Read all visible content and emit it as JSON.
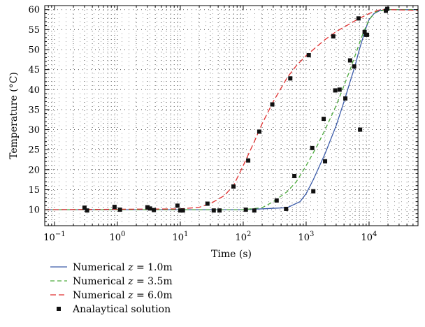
{
  "chart_data": {
    "type": "line",
    "title": "",
    "xlabel": "Time (s)",
    "ylabel": "Temperature (°C)",
    "x_scale": "log",
    "xlim": [
      0.07,
      60000
    ],
    "ylim": [
      6,
      61
    ],
    "grid": true,
    "legend_position": "below",
    "y_ticks": [
      10,
      15,
      20,
      25,
      30,
      35,
      40,
      45,
      50,
      55,
      60
    ],
    "x_ticks": [
      {
        "value": 0.1,
        "base": "10",
        "exp": "−1"
      },
      {
        "value": 1,
        "base": "10",
        "exp": "0"
      },
      {
        "value": 10,
        "base": "10",
        "exp": "1"
      },
      {
        "value": 100,
        "base": "10",
        "exp": "2"
      },
      {
        "value": 1000,
        "base": "10",
        "exp": "3"
      },
      {
        "value": 10000,
        "base": "10",
        "exp": "4"
      }
    ],
    "series": [
      {
        "name": "Numerical z = 1.0m",
        "legend": {
          "prefix": "Numerical ",
          "var": "z",
          "suffix": " = 1.0m"
        },
        "color": "#3a5aa8",
        "dash": "solid",
        "x": [
          0.07,
          100,
          500,
          800,
          1000,
          1300,
          2000,
          3000,
          4000,
          5000,
          6000,
          7000,
          8000,
          9000,
          10000,
          12000,
          15000,
          20000,
          60000
        ],
        "y": [
          10,
          10,
          10.5,
          12,
          14,
          17.5,
          24,
          31,
          37,
          42,
          46,
          50,
          53,
          55.5,
          57.5,
          59,
          59.8,
          60,
          60
        ]
      },
      {
        "name": "Numerical z = 3.5m",
        "legend": {
          "prefix": "Numerical ",
          "var": "z",
          "suffix": " = 3.5m"
        },
        "color": "#4caa3c",
        "dash": "6,4",
        "x": [
          0.07,
          100,
          200,
          300,
          500,
          700,
          1000,
          1500,
          2000,
          3000,
          4000,
          5000,
          6000,
          7000,
          8000,
          10000,
          13000,
          20000,
          60000
        ],
        "y": [
          10,
          10,
          10.5,
          12,
          14.5,
          17,
          21,
          26,
          30,
          36,
          41,
          45,
          48.5,
          51.5,
          54,
          57.5,
          59.5,
          60,
          60
        ]
      },
      {
        "name": "Numerical z = 6.0m",
        "legend": {
          "prefix": "Numerical ",
          "var": "z",
          "suffix": " = 6.0m"
        },
        "color": "#e03030",
        "dash": "8,4",
        "x": [
          0.07,
          10,
          20,
          30,
          50,
          70,
          100,
          150,
          200,
          300,
          500,
          700,
          1000,
          2000,
          3000,
          5000,
          7000,
          10000,
          15000,
          20000,
          60000
        ],
        "y": [
          10,
          10.2,
          10.6,
          11.5,
          13.5,
          16,
          21,
          27,
          31.5,
          37,
          43,
          46,
          48.5,
          52.5,
          54.5,
          56.5,
          57.8,
          59,
          60,
          60,
          59.8
        ]
      },
      {
        "name": "Analaytical solution",
        "legend": {
          "prefix": "Analaytical solution",
          "var": "",
          "suffix": ""
        },
        "color": "#111111",
        "marker": "square",
        "x": [
          0.3,
          0.33,
          0.9,
          1.1,
          3,
          3.3,
          3.8,
          9,
          10,
          11,
          27,
          34,
          42,
          110,
          150,
          480,
          1300,
          2000,
          1250,
          1900,
          2900,
          3400,
          4200,
          5000,
          5800,
          6800,
          8500,
          9000,
          18500,
          19500,
          340,
          650,
          70,
          120,
          180,
          290,
          560,
          1100,
          2700,
          7200,
          9300
        ],
        "y": [
          10.5,
          9.8,
          10.7,
          10,
          10.6,
          10.3,
          9.9,
          11,
          9.8,
          9.8,
          11.5,
          9.8,
          9.8,
          10,
          9.8,
          10.2,
          14.6,
          22.1,
          25.4,
          32.7,
          39.8,
          40,
          37.8,
          47.3,
          45.8,
          57.8,
          54.4,
          53.7,
          59.7,
          60.2,
          12.3,
          18.4,
          15.8,
          22.3,
          29.5,
          36.3,
          42.8,
          48.6,
          53.3,
          30,
          53.7
        ]
      }
    ]
  }
}
